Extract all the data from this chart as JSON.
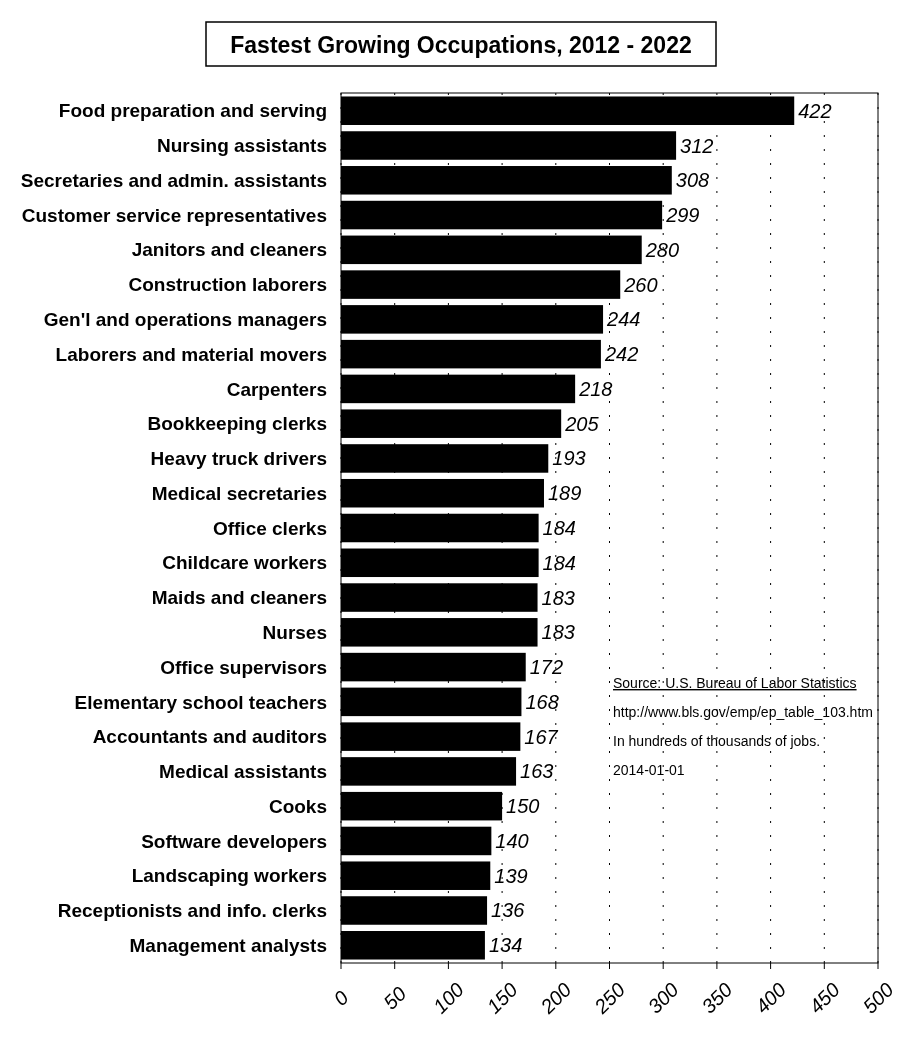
{
  "chart_data": {
    "type": "bar",
    "orientation": "horizontal",
    "title": "Fastest Growing Occupations, 2012 - 2022",
    "categories": [
      "Food preparation and serving",
      "Nursing assistants",
      "Secretaries and admin. assistants",
      "Customer service representatives",
      "Janitors and cleaners",
      "Construction laborers",
      "Gen'l and operations managers",
      "Laborers and material movers",
      "Carpenters",
      "Bookkeeping clerks",
      "Heavy truck drivers",
      "Medical secretaries",
      "Office clerks",
      "Childcare workers",
      "Maids and cleaners",
      "Nurses",
      "Office supervisors",
      "Elementary school teachers",
      "Accountants and auditors",
      "Medical assistants",
      "Cooks",
      "Software developers",
      "Landscaping workers",
      "Receptionists and info. clerks",
      "Management analysts"
    ],
    "values": [
      422,
      312,
      308,
      299,
      280,
      260,
      244,
      242,
      218,
      205,
      193,
      189,
      184,
      184,
      183,
      183,
      172,
      168,
      167,
      163,
      150,
      140,
      139,
      136,
      134
    ],
    "color": "#000000",
    "data_labels": true,
    "xlim": [
      0,
      500
    ],
    "xticks": [
      0,
      50,
      100,
      150,
      200,
      250,
      300,
      350,
      400,
      450,
      500
    ],
    "grid": "x",
    "annotations": [
      "Source: U.S. Bureau of Labor Statistics",
      "http://www.bls.gov/emp/ep_table_103.htm",
      "In hundreds of thousands of jobs.",
      "2014-01-01"
    ]
  }
}
